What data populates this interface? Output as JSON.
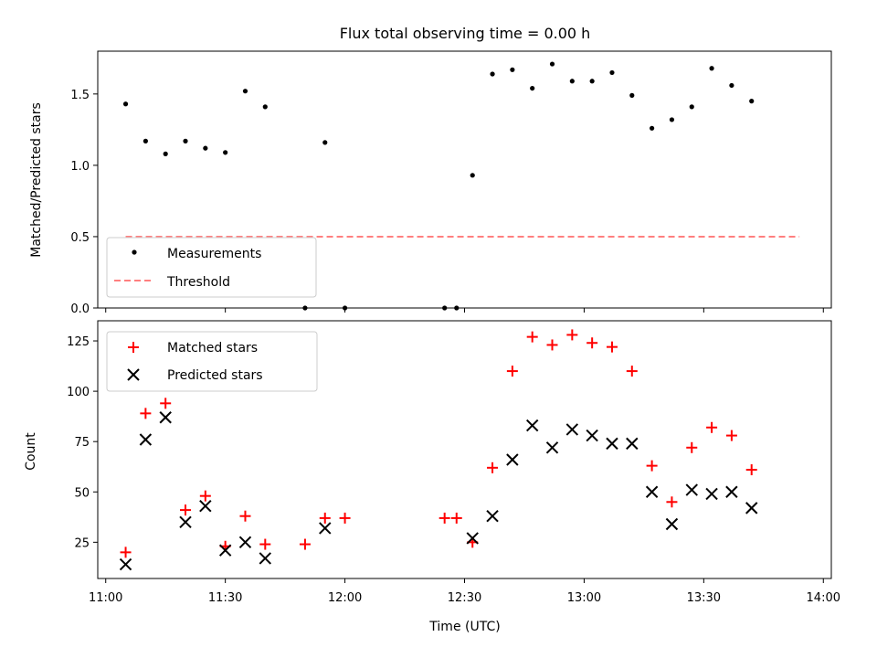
{
  "chart_data": [
    {
      "type": "scatter",
      "title": "Flux total observing time = 0.00 h",
      "xlabel": "",
      "ylabel": "Matched/Predicted stars",
      "ylim": [
        0,
        1.8
      ],
      "yticks": [
        "0.0",
        "0.5",
        "1.0",
        "1.5"
      ],
      "xlim_minutes": [
        658,
        842
      ],
      "threshold": {
        "name": "Threshold",
        "value": 0.5,
        "x": [
          665,
          834
        ],
        "color": "#ff7f7f"
      },
      "legend": [
        "Measurements",
        "Threshold"
      ],
      "legend_position": "lower-left",
      "series": [
        {
          "name": "Measurements",
          "color": "#000000",
          "x": [
            665,
            670,
            675,
            680,
            685,
            690,
            695,
            700,
            710,
            715,
            720,
            745,
            748,
            752,
            757,
            762,
            767,
            772,
            777,
            782,
            787,
            792,
            797,
            802,
            807,
            812,
            817,
            822,
            827,
            832
          ],
          "y": [
            1.43,
            1.17,
            1.08,
            1.17,
            1.12,
            1.09,
            1.52,
            1.41,
            0.0,
            1.16,
            0.0,
            0.0,
            0.0,
            0.93,
            1.64,
            1.67,
            1.54,
            1.71,
            1.59,
            1.59,
            1.65,
            1.49,
            1.26,
            1.32,
            1.41,
            1.68,
            1.56,
            1.45,
            null,
            null
          ]
        }
      ]
    },
    {
      "type": "scatter",
      "title": "",
      "xlabel": "Time (UTC)",
      "ylabel": "Count",
      "ylim": [
        7,
        135
      ],
      "yticks": [
        "25",
        "50",
        "75",
        "100",
        "125"
      ],
      "xlim_minutes": [
        658,
        842
      ],
      "xticks": [
        "11:00",
        "11:30",
        "12:00",
        "12:30",
        "13:00",
        "13:30",
        "14:00"
      ],
      "legend": [
        "Matched stars",
        "Predicted stars"
      ],
      "legend_position": "top-left",
      "series": [
        {
          "name": "Matched stars",
          "marker": "plus",
          "color": "#ff0000",
          "x": [
            665,
            670,
            675,
            680,
            685,
            690,
            695,
            700,
            710,
            715,
            720,
            745,
            748,
            752,
            757,
            762,
            767,
            772,
            777,
            782,
            787,
            792,
            797,
            802,
            807,
            812,
            817,
            822
          ],
          "y": [
            20,
            89,
            94,
            41,
            48,
            23,
            38,
            24,
            24,
            37,
            37,
            37,
            37,
            25,
            62,
            110,
            127,
            123,
            128,
            124,
            122,
            110,
            63,
            45,
            72,
            82,
            78,
            61
          ]
        },
        {
          "name": "Predicted stars",
          "marker": "x",
          "color": "#000000",
          "x": [
            665,
            670,
            675,
            680,
            685,
            690,
            695,
            700,
            715,
            752,
            757,
            762,
            767,
            772,
            777,
            782,
            787,
            792,
            797,
            802,
            807,
            812,
            817,
            822
          ],
          "y": [
            14,
            76,
            87,
            35,
            43,
            21,
            25,
            17,
            32,
            27,
            38,
            66,
            83,
            72,
            81,
            78,
            74,
            74,
            50,
            34,
            51,
            49,
            50,
            42
          ]
        }
      ]
    }
  ]
}
